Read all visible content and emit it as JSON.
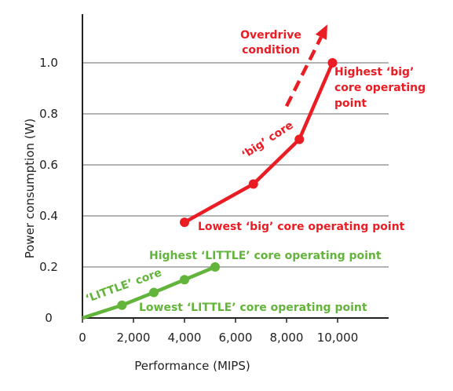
{
  "chart_data": {
    "type": "line",
    "xlabel": "Performance (MIPS)",
    "ylabel": "Power consumption (W)",
    "xlim": [
      0,
      12000
    ],
    "ylim": [
      0,
      1.2
    ],
    "x_ticks": [
      {
        "value": 0,
        "label": "0"
      },
      {
        "value": 2000,
        "label": "2,000"
      },
      {
        "value": 4000,
        "label": "4,000"
      },
      {
        "value": 6000,
        "label": "6,000"
      },
      {
        "value": 8000,
        "label": "8,000"
      },
      {
        "value": 10000,
        "label": "10,000"
      }
    ],
    "y_ticks": [
      {
        "value": 0,
        "label": "0"
      },
      {
        "value": 0.2,
        "label": "0.2"
      },
      {
        "value": 0.4,
        "label": "0.4"
      },
      {
        "value": 0.6,
        "label": "0.6"
      },
      {
        "value": 0.8,
        "label": "0.8"
      },
      {
        "value": 1.0,
        "label": "1.0"
      }
    ],
    "grid": true,
    "series": [
      {
        "name": "'LITTLE' core",
        "color": "#62b43a",
        "x": [
          0,
          1550,
          2800,
          4000,
          5200
        ],
        "y": [
          0,
          0.05,
          0.1,
          0.15,
          0.2
        ]
      },
      {
        "name": "'big' core",
        "color": "#ea1c24",
        "x": [
          4000,
          6700,
          8500,
          9800
        ],
        "y": [
          0.375,
          0.525,
          0.7,
          1.0
        ]
      }
    ],
    "overdrive": {
      "color": "#ea1c24",
      "from": {
        "x": 8000,
        "y": 0.83
      },
      "to": {
        "x": 9600,
        "y": 1.15
      }
    },
    "annotations": {
      "overdrive_line1": "Overdrive",
      "overdrive_line2": "condition",
      "highest_big_line1": "Highest ‘big’",
      "highest_big_line2": "core operating",
      "highest_big_line3": "point",
      "big_core": "‘big’ core",
      "lowest_big": "Lowest ‘big’ core operating point",
      "highest_little": "Highest ‘LITTLE’ core operating point",
      "little_core": "‘LITTLE’ core",
      "lowest_little": "Lowest ‘LITTLE’ core operating point"
    }
  }
}
